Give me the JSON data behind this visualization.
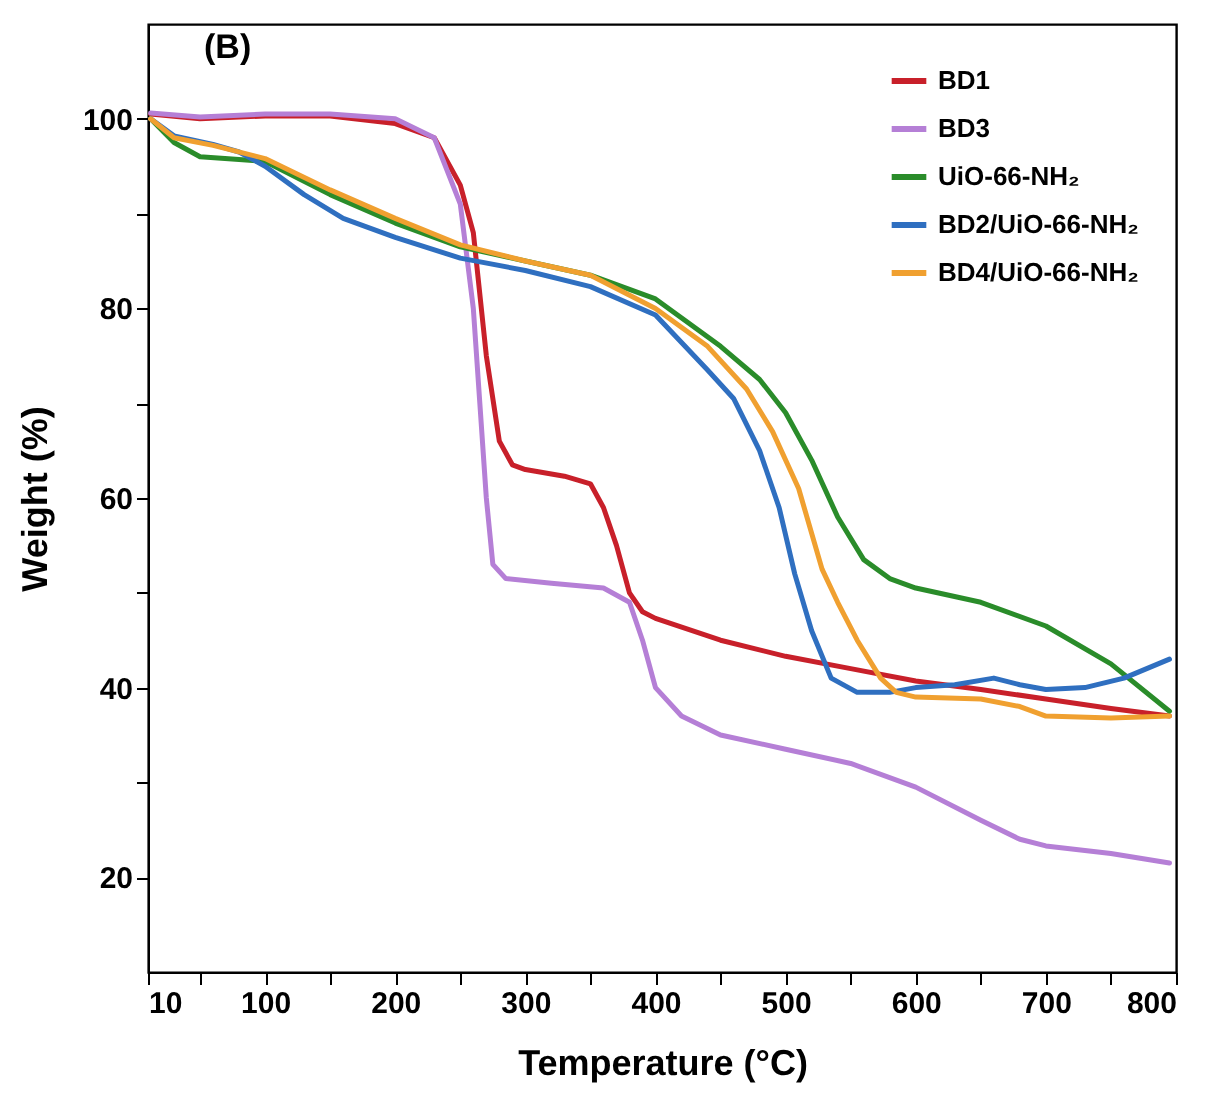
{
  "chart_data": {
    "type": "line",
    "xlabel": "Temperature (°C)",
    "ylabel": "Weight (%)",
    "annotations": [
      "(B)"
    ],
    "xlim": [
      10,
      800
    ],
    "ylim": [
      10,
      110
    ],
    "xticks": [
      10,
      {
        "value": 50,
        "label": null
      },
      100,
      {
        "value": 150,
        "label": null
      },
      200,
      {
        "value": 250,
        "label": null
      },
      300,
      {
        "value": 350,
        "label": null
      },
      400,
      {
        "value": 450,
        "label": null
      },
      500,
      {
        "value": 550,
        "label": null
      },
      600,
      {
        "value": 650,
        "label": null
      },
      700,
      {
        "value": 750,
        "label": null
      },
      800
    ],
    "yticks": [
      20,
      {
        "value": 30,
        "label": null
      },
      40,
      {
        "value": 50,
        "label": null
      },
      60,
      {
        "value": 70,
        "label": null
      },
      80,
      {
        "value": 90,
        "label": null
      },
      100
    ],
    "grid": false,
    "legend": "top right",
    "marker": "none",
    "line_style": "solid",
    "series": [
      {
        "name": "BD1",
        "color": "#c8202a",
        "x": [
          12,
          50,
          100,
          150,
          200,
          230,
          250,
          260,
          270,
          280,
          290,
          300,
          330,
          350,
          360,
          370,
          380,
          390,
          400,
          450,
          500,
          550,
          600,
          650,
          700,
          750,
          795
        ],
        "values": [
          100.5,
          100,
          100.3,
          100.3,
          99.5,
          98,
          93,
          88,
          75,
          66,
          63.5,
          63,
          62.3,
          61.5,
          59,
          55,
          50,
          48,
          47.3,
          45,
          43.3,
          42,
          40.7,
          39.8,
          38.8,
          37.8,
          37
        ]
      },
      {
        "name": "BD3",
        "color": "#b57fd6",
        "x": [
          12,
          50,
          100,
          150,
          200,
          230,
          250,
          260,
          265,
          270,
          275,
          285,
          320,
          360,
          380,
          390,
          400,
          420,
          450,
          500,
          550,
          600,
          650,
          680,
          700,
          750,
          795
        ],
        "values": [
          100.6,
          100.2,
          100.5,
          100.5,
          100,
          98,
          91,
          80,
          70,
          60,
          53,
          51.5,
          51,
          50.5,
          49,
          45,
          40,
          37,
          35,
          33.5,
          32,
          29.5,
          26,
          24,
          23.3,
          22.5,
          21.5
        ]
      },
      {
        "name": "UiO-66-NH₂",
        "color": "#2a8c2a",
        "x": [
          12,
          30,
          50,
          80,
          100,
          150,
          200,
          250,
          300,
          350,
          400,
          450,
          480,
          500,
          520,
          540,
          560,
          580,
          600,
          650,
          700,
          750,
          795
        ],
        "values": [
          100,
          97.5,
          96,
          95.7,
          95.5,
          92,
          89,
          86.5,
          85,
          83.5,
          81,
          76,
          72.5,
          69,
          64,
          58,
          53.5,
          51.5,
          50.5,
          49,
          46.5,
          42.5,
          37.5
        ]
      },
      {
        "name": "BD2/UiO-66-NH₂",
        "color": "#2f6fc0",
        "x": [
          12,
          30,
          60,
          80,
          100,
          130,
          160,
          200,
          250,
          300,
          350,
          400,
          440,
          460,
          480,
          495,
          507,
          520,
          535,
          555,
          580,
          600,
          630,
          660,
          680,
          700,
          730,
          760,
          795
        ],
        "values": [
          100,
          98.2,
          97.3,
          96.5,
          95,
          92,
          89.5,
          87.5,
          85.3,
          84,
          82.3,
          79.3,
          73.5,
          70.5,
          65,
          59,
          52,
          46,
          41,
          39.5,
          39.5,
          40,
          40.3,
          41,
          40.3,
          39.8,
          40,
          41,
          43
        ]
      },
      {
        "name": "BD4/UiO-66-NH₂",
        "color": "#f0a030",
        "x": [
          12,
          30,
          60,
          100,
          150,
          200,
          250,
          300,
          350,
          400,
          440,
          470,
          490,
          510,
          528,
          540,
          555,
          573,
          585,
          600,
          650,
          680,
          700,
          750,
          795
        ],
        "values": [
          100,
          98,
          97.2,
          95.8,
          92.5,
          89.5,
          86.7,
          85,
          83.5,
          80,
          76,
          71.5,
          67,
          61,
          52.5,
          49,
          45,
          41,
          39.5,
          39,
          38.8,
          38,
          37,
          36.8,
          37
        ]
      }
    ]
  }
}
